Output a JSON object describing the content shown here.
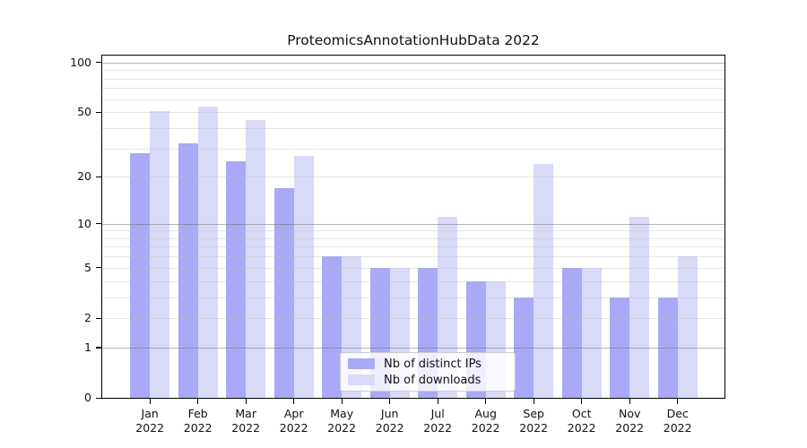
{
  "chart_data": {
    "type": "bar",
    "title": "ProteomicsAnnotationHubData 2022",
    "y_scale": "log1p",
    "grid": true,
    "legend_position": "lower center",
    "categories": [
      {
        "month": "Jan",
        "year": "2022"
      },
      {
        "month": "Feb",
        "year": "2022"
      },
      {
        "month": "Mar",
        "year": "2022"
      },
      {
        "month": "Apr",
        "year": "2022"
      },
      {
        "month": "May",
        "year": "2022"
      },
      {
        "month": "Jun",
        "year": "2022"
      },
      {
        "month": "Jul",
        "year": "2022"
      },
      {
        "month": "Aug",
        "year": "2022"
      },
      {
        "month": "Sep",
        "year": "2022"
      },
      {
        "month": "Oct",
        "year": "2022"
      },
      {
        "month": "Nov",
        "year": "2022"
      },
      {
        "month": "Dec",
        "year": "2022"
      }
    ],
    "series": [
      {
        "name": "Nb of distinct IPs",
        "color": "#a9a9f7",
        "values": [
          28,
          32,
          25,
          17,
          6,
          5,
          5,
          4,
          3,
          5,
          3,
          3
        ]
      },
      {
        "name": "Nb of downloads",
        "color": "#d9d9f8",
        "values": [
          51,
          54,
          45,
          27,
          6,
          5,
          11,
          4,
          24,
          5,
          11,
          6
        ]
      }
    ],
    "y_ticks": [
      0,
      1,
      2,
      5,
      10,
      20,
      50,
      100
    ],
    "y_major_gridlines": [
      1,
      10,
      100
    ],
    "y_minor_gridlines": [
      2,
      3,
      4,
      5,
      6,
      7,
      8,
      9,
      20,
      30,
      40,
      50,
      60,
      70,
      80,
      90
    ],
    "ylim": [
      0,
      110
    ],
    "axis_color": "#000000",
    "major_grid_color": "#bbbbbb",
    "minor_grid_color": "#e8e8e8"
  }
}
